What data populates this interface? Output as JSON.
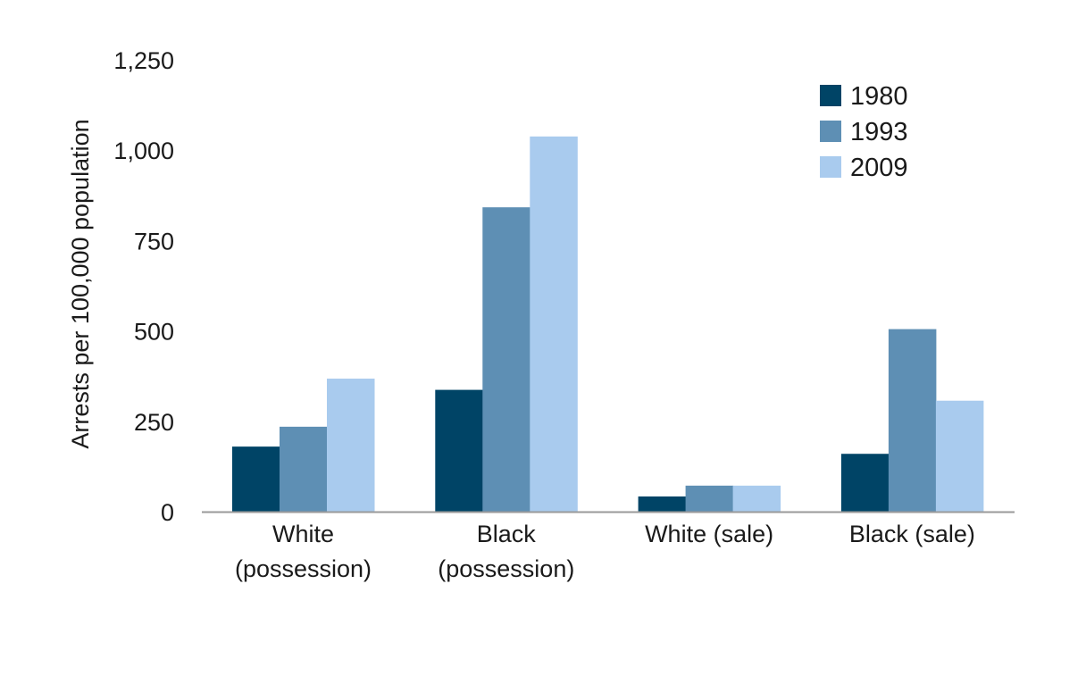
{
  "chart_data": {
    "type": "bar",
    "title": "",
    "xlabel": "",
    "ylabel": "Arrests per 100,000 population",
    "ylim": [
      0,
      1250
    ],
    "yticks": [
      0,
      250,
      500,
      750,
      1000,
      1250
    ],
    "ytick_labels": [
      "0",
      "250",
      "500",
      "750",
      "1,000",
      "1,250"
    ],
    "grid": false,
    "legend_position": "top-right",
    "categories": [
      [
        "White",
        "(possession)"
      ],
      [
        "Black",
        "(possession)"
      ],
      [
        "White (sale)"
      ],
      [
        "Black (sale)"
      ]
    ],
    "series": [
      {
        "name": "1980",
        "color": "#004466",
        "values": [
          180,
          337,
          42,
          160
        ]
      },
      {
        "name": "1993",
        "color": "#5e8fb4",
        "values": [
          235,
          842,
          72,
          505
        ]
      },
      {
        "name": "2009",
        "color": "#a9cbee",
        "values": [
          368,
          1038,
          72,
          307
        ]
      }
    ]
  }
}
